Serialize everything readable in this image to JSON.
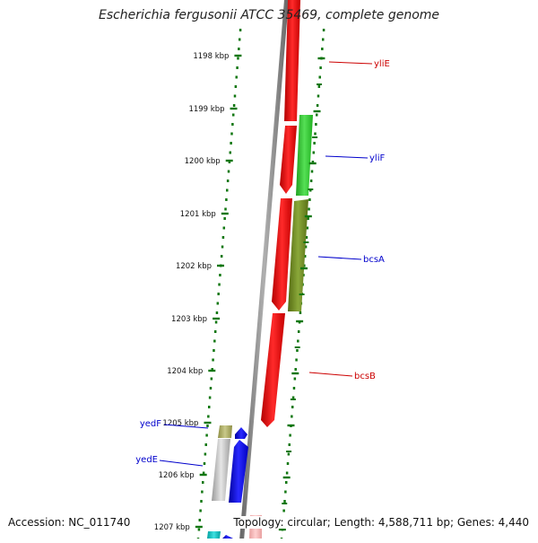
{
  "title": "Escherichia fergusonii ATCC 35469, complete genome",
  "footer": {
    "accession": "Accession: NC_011740",
    "summary": "Topology: circular; Length: 4,588,711 bp; Genes: 4,440"
  },
  "ticks": [
    "1198 kbp",
    "1199 kbp",
    "1200 kbp",
    "1201 kbp",
    "1202 kbp",
    "1203 kbp",
    "1204 kbp",
    "1205 kbp",
    "1206 kbp",
    "1207 kbp"
  ],
  "genes": [
    {
      "name": "yliE",
      "strand": "forward",
      "color": "#ff2020"
    },
    {
      "name": "yliF",
      "strand": "reverse",
      "color": "#33cc33"
    },
    {
      "name": "bcsA",
      "strand": "reverse",
      "color": "#6b8e23"
    },
    {
      "name": "bcsB",
      "strand": "forward",
      "color": "#ff2020"
    },
    {
      "name": "yedF",
      "strand": "reverse",
      "color": "#b5b56a"
    },
    {
      "name": "yedE",
      "strand": "reverse",
      "color": "#0000ff"
    }
  ],
  "colors": {
    "forward_label": "#cc0000",
    "reverse_label": "#0000cc",
    "backbone": "#8a8a8a",
    "dots": "#117711"
  }
}
